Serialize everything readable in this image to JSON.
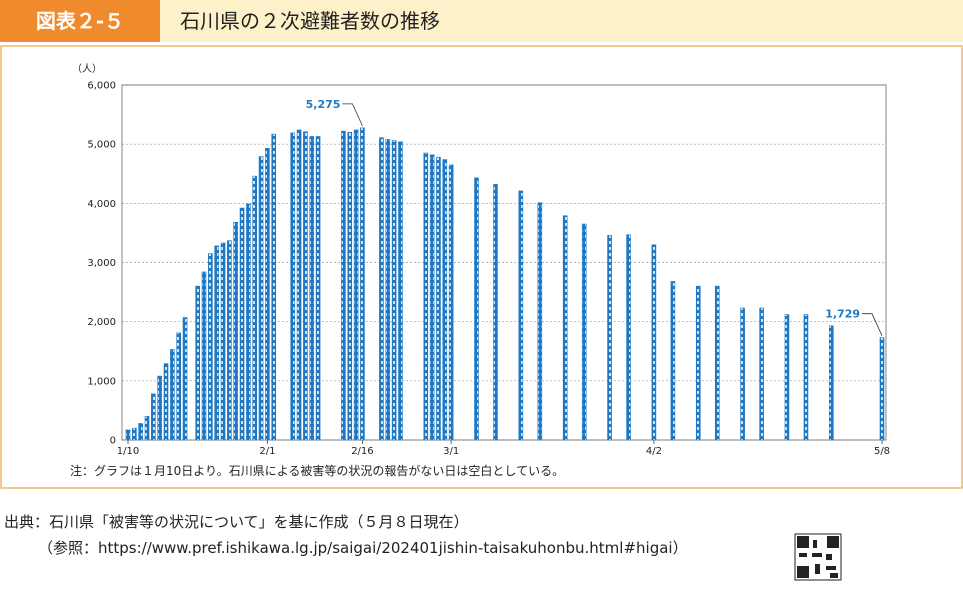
{
  "header": {
    "label": "図表２-５",
    "title": "石川県の２次避難者数の推移"
  },
  "chart_data": {
    "type": "bar",
    "y_unit": "（人）",
    "color": "#1f78c1",
    "categories": [
      "1/10",
      null,
      null,
      null,
      null,
      null,
      null,
      null,
      null,
      null,
      null,
      null,
      null,
      null,
      null,
      null,
      null,
      null,
      null,
      null,
      null,
      null,
      "2/1",
      null,
      null,
      null,
      null,
      null,
      null,
      null,
      null,
      null,
      null,
      null,
      null,
      null,
      null,
      "2/16",
      null,
      null,
      null,
      null,
      null,
      null,
      null,
      null,
      null,
      null,
      null,
      null,
      null,
      "3/1",
      null,
      null,
      null,
      null,
      null,
      null,
      null,
      null,
      null,
      null,
      null,
      null,
      null,
      null,
      null,
      null,
      null,
      null,
      null,
      null,
      null,
      null,
      null,
      null,
      null,
      null,
      null,
      null,
      null,
      null,
      null,
      "4/2",
      null,
      null,
      null,
      null,
      null,
      null,
      null,
      null,
      null,
      null,
      null,
      null,
      null,
      null,
      null,
      null,
      null,
      null,
      null,
      null,
      null,
      null,
      null,
      null,
      null,
      null,
      null,
      null,
      null,
      null,
      null,
      null,
      null,
      null,
      null,
      "5/8"
    ],
    "values": [
      170,
      200,
      280,
      400,
      780,
      1080,
      1290,
      1530,
      1810,
      2070,
      null,
      2600,
      2840,
      3150,
      3280,
      3330,
      3370,
      3680,
      3920,
      3990,
      4460,
      4790,
      4930,
      5170,
      null,
      null,
      5190,
      5240,
      5210,
      5130,
      5130,
      null,
      null,
      null,
      5220,
      5200,
      5240,
      5275,
      null,
      null,
      5110,
      5080,
      5060,
      5040,
      null,
      null,
      null,
      4850,
      4820,
      4780,
      4740,
      4650,
      null,
      null,
      null,
      4430,
      null,
      null,
      4320,
      null,
      null,
      null,
      4210,
      null,
      null,
      4010,
      null,
      null,
      null,
      3790,
      null,
      null,
      3650,
      null,
      null,
      null,
      3460,
      null,
      null,
      3470,
      null,
      null,
      null,
      3300,
      null,
      null,
      2680,
      null,
      null,
      null,
      2600,
      null,
      null,
      2600,
      null,
      null,
      null,
      2230,
      null,
      null,
      2230,
      null,
      null,
      null,
      2120,
      null,
      null,
      2120,
      null,
      null,
      null,
      1930,
      null,
      null,
      null,
      null,
      null,
      null,
      null,
      1729
    ],
    "value_labels": [
      null,
      null,
      null,
      null,
      null,
      null,
      null,
      null,
      null,
      null,
      null,
      null,
      null,
      null,
      null,
      null,
      null,
      null,
      null,
      null,
      null,
      null,
      null,
      null,
      null,
      null,
      null,
      null,
      null,
      null,
      null,
      null,
      null,
      null,
      null,
      null,
      null,
      "5,275",
      null,
      null,
      null,
      null,
      null,
      null,
      null,
      null,
      null,
      null,
      null,
      null,
      null,
      null,
      null,
      null,
      null,
      null,
      null,
      null,
      null,
      null,
      null,
      null,
      null,
      null,
      null,
      null,
      null,
      null,
      null,
      null,
      null,
      null,
      null,
      null,
      null,
      null,
      null,
      null,
      null,
      null,
      null,
      null,
      null,
      null,
      null,
      null,
      null,
      null,
      null,
      null,
      null,
      null,
      null,
      null,
      null,
      null,
      null,
      null,
      null,
      null,
      null,
      null,
      null,
      null,
      null,
      null,
      null,
      null,
      null,
      null,
      null,
      null,
      null,
      null,
      null,
      null,
      null,
      null,
      null,
      "1,729"
    ],
    "ylim": [
      0,
      6000
    ],
    "yticks": [
      0,
      {
        "value": 1000,
        "label": "1,000"
      },
      {
        "value": 2000,
        "label": "2,000"
      },
      {
        "value": 3000,
        "label": "3,000"
      },
      {
        "value": 4000,
        "label": "4,000"
      },
      {
        "value": 5000,
        "label": "5,000"
      },
      {
        "value": 6000,
        "label": "6,000"
      }
    ],
    "grid": true,
    "note": "注：グラフは１月10日より。石川県による被害等の状況の報告がない日は空白としている。"
  },
  "source": {
    "line1": "出典：石川県「被害等の状況について」を基に作成（５月８日現在）",
    "line2": "（参照：https://www.pref.ishikawa.lg.jp/saigai/202401jishin-taisakuhonbu.html#higai）"
  }
}
